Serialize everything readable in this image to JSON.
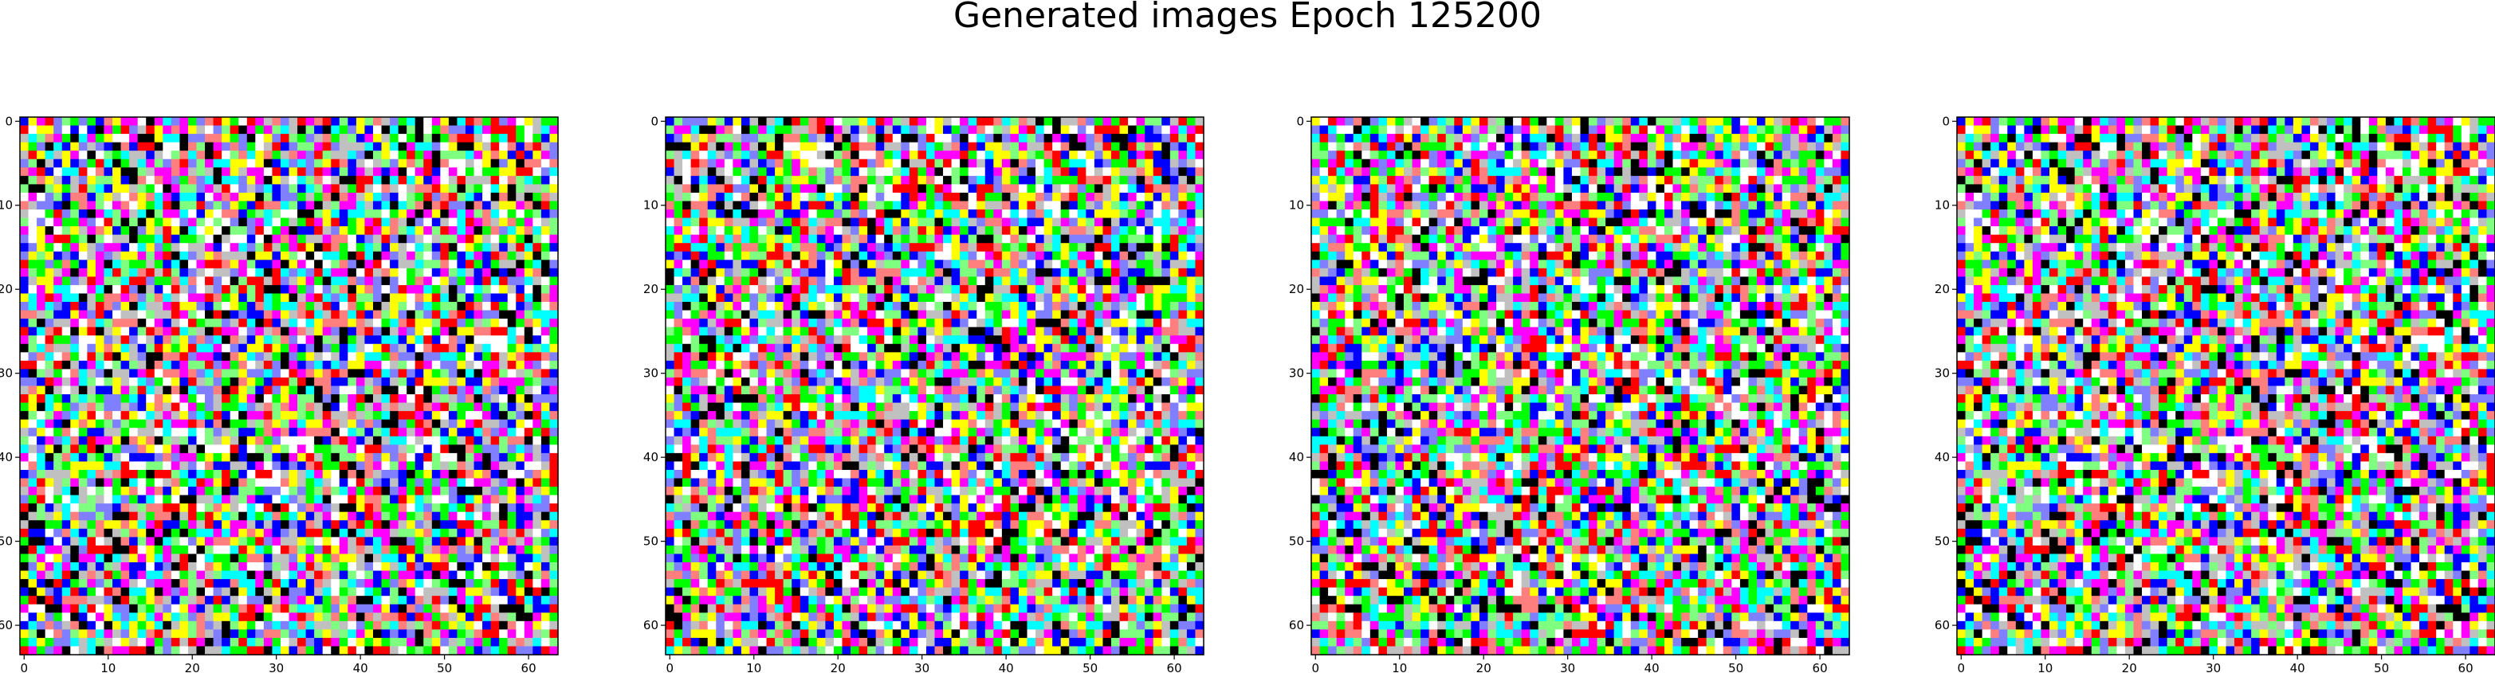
{
  "figure": {
    "title": "Generated images Epoch 125200"
  },
  "chart_data": [
    {
      "type": "heatmap",
      "panel": 1,
      "rows": 64,
      "cols": 64,
      "x_ticks": [
        0,
        10,
        20,
        30,
        40,
        50,
        60
      ],
      "y_ticks": [
        0,
        10,
        20,
        30,
        40,
        50,
        60
      ],
      "xlim": [
        -0.5,
        63.5
      ],
      "ylim": [
        63.5,
        -0.5
      ],
      "grid": false,
      "palette": [
        "#ff0000",
        "#00ff00",
        "#0000ff",
        "#ffff00",
        "#ff00ff",
        "#00ffff",
        "#ffffff",
        "#000000",
        "#7f7fff",
        "#ff7f7f",
        "#7fff7f",
        "#c0c0c0"
      ],
      "seed": 11
    },
    {
      "type": "heatmap",
      "panel": 2,
      "rows": 64,
      "cols": 64,
      "x_ticks": [
        0,
        10,
        20,
        30,
        40,
        50,
        60
      ],
      "y_ticks": [
        0,
        10,
        20,
        30,
        40,
        50,
        60
      ],
      "xlim": [
        -0.5,
        63.5
      ],
      "ylim": [
        63.5,
        -0.5
      ],
      "grid": false,
      "palette": [
        "#ff0000",
        "#00ff00",
        "#0000ff",
        "#ffff00",
        "#ff00ff",
        "#00ffff",
        "#ffffff",
        "#000000",
        "#7f7fff",
        "#ff7f7f",
        "#7fff7f",
        "#c0c0c0"
      ],
      "seed": 29
    },
    {
      "type": "heatmap",
      "panel": 3,
      "rows": 64,
      "cols": 64,
      "x_ticks": [
        0,
        10,
        20,
        30,
        40,
        50,
        60
      ],
      "y_ticks": [
        0,
        10,
        20,
        30,
        40,
        50,
        60
      ],
      "xlim": [
        -0.5,
        63.5
      ],
      "ylim": [
        63.5,
        -0.5
      ],
      "grid": false,
      "palette": [
        "#ff0000",
        "#00ff00",
        "#0000ff",
        "#ffff00",
        "#ff00ff",
        "#00ffff",
        "#ffffff",
        "#000000",
        "#7f7fff",
        "#ff7f7f",
        "#7fff7f",
        "#c0c0c0"
      ],
      "seed": 47
    },
    {
      "type": "heatmap",
      "panel": 4,
      "rows": 64,
      "cols": 64,
      "x_ticks": [
        0,
        10,
        20,
        30,
        40,
        50,
        60
      ],
      "y_ticks": [
        0,
        10,
        20,
        30,
        40,
        50,
        60
      ],
      "xlim": [
        -0.5,
        63.5
      ],
      "ylim": [
        63.5,
        -0.5
      ],
      "grid": false,
      "palette": [
        "#ff0000",
        "#00ff00",
        "#0000ff",
        "#ffff00",
        "#ff00ff",
        "#00ffff",
        "#ffffff",
        "#000000",
        "#7f7fff",
        "#ff7f7f",
        "#7fff7f",
        "#c0c0c0"
      ],
      "seed": 11
    }
  ]
}
